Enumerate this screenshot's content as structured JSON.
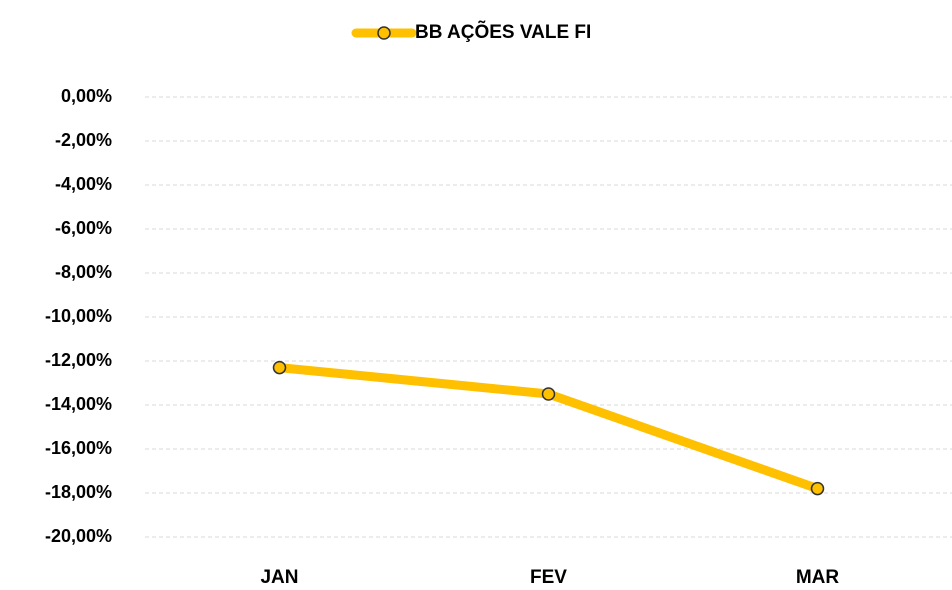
{
  "chart_data": {
    "type": "line",
    "categories": [
      "JAN",
      "FEV",
      "MAR"
    ],
    "series": [
      {
        "name": "BB AÇÕES VALE FI",
        "color": "#ffc000",
        "values": [
          -12.3,
          -13.5,
          -17.8
        ]
      }
    ],
    "ylim": [
      -20,
      0
    ],
    "yticks": [
      {
        "value": 0,
        "label": "0,00%"
      },
      {
        "value": -2,
        "label": "-2,00%"
      },
      {
        "value": -4,
        "label": "-4,00%"
      },
      {
        "value": -6,
        "label": "-6,00%"
      },
      {
        "value": -8,
        "label": "-8,00%"
      },
      {
        "value": -10,
        "label": "-10,00%"
      },
      {
        "value": -12,
        "label": "-12,00%"
      },
      {
        "value": -14,
        "label": "-14,00%"
      },
      {
        "value": -16,
        "label": "-16,00%"
      },
      {
        "value": -18,
        "label": "-18,00%"
      },
      {
        "value": -20,
        "label": "-20,00%"
      }
    ],
    "grid": true,
    "legend": "top"
  }
}
